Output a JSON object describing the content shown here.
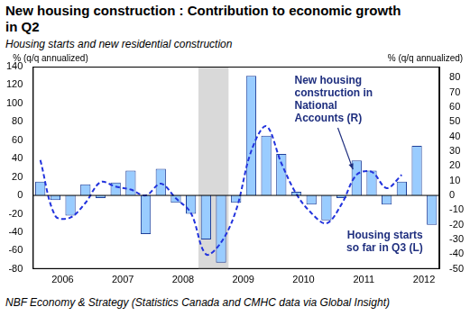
{
  "chart_data": {
    "type": "bar",
    "title": "New housing construction : Contribution to economic growth in Q2",
    "subtitle": "Housing starts and new residential construction",
    "source": "NBF Economy & Strategy (Statistics Canada and CMHC data via Global Insight)",
    "y_label": "% (q/q annualized)",
    "y2_label": "% (q/q annualized)",
    "categories": [
      null,
      "2006",
      null,
      null,
      null,
      "2007",
      null,
      null,
      null,
      "2008",
      null,
      null,
      null,
      "2009",
      null,
      null,
      null,
      "2010",
      null,
      null,
      null,
      "2011",
      null,
      null,
      null,
      "2012",
      null
    ],
    "shaded_range": [
      11,
      12
    ],
    "series": [
      {
        "type": "bar",
        "color": "#99ccff",
        "axis": "y",
        "values": [
          15,
          -5,
          -22,
          12,
          -3,
          14,
          27,
          -42,
          29,
          -8,
          -20,
          -48,
          -73,
          -8,
          130,
          65,
          45,
          4,
          -10,
          -27,
          -3,
          38,
          27,
          -10,
          15,
          54,
          -32
        ]
      },
      {
        "type": "line",
        "color": "#2233dd",
        "line_style": "dashed",
        "axis": "y2",
        "values": [
          24,
          -14,
          -15,
          -5,
          9,
          6,
          4,
          0,
          8,
          -2,
          -12,
          -40,
          -32,
          -10,
          30,
          47,
          22,
          1,
          -12,
          -19,
          -6,
          14,
          16,
          5,
          14,
          null,
          null
        ]
      }
    ],
    "annotations": [
      {
        "lines": [
          "New housing",
          "construction in",
          "National",
          "Accounts (R)"
        ]
      },
      {
        "lines": [
          "Housing starts",
          "so far in Q3 (L)"
        ]
      }
    ],
    "ylim": [
      -80,
      140
    ],
    "yticks": [
      -80,
      -60,
      -40,
      -20,
      0,
      20,
      40,
      60,
      80,
      100,
      120,
      140
    ],
    "y2lim": [
      -50,
      87.5
    ],
    "y2ticks": [
      -50,
      -40,
      -30,
      -20,
      -10,
      0,
      10,
      20,
      30,
      40,
      50,
      60,
      70,
      80
    ],
    "grid": false
  }
}
